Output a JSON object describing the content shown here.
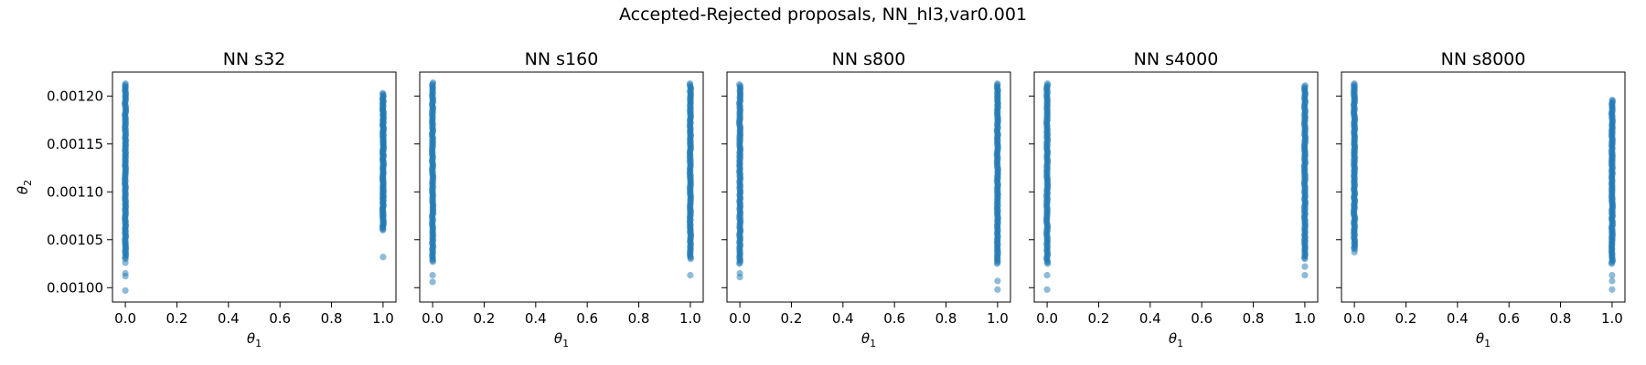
{
  "figure": {
    "suptitle": "Accepted-Rejected proposals, NN_hl3,var0.001"
  },
  "style": {
    "marker_color": "#1f77b4",
    "marker_opacity": 0.5,
    "axes_color": "#000000",
    "background": "#ffffff"
  },
  "shared_axes": {
    "xlabel_base": "θ",
    "xlabel_sub": "1",
    "ylabel_base": "θ",
    "ylabel_sub": "2",
    "xlim": [
      -0.05,
      1.05
    ],
    "ylim": [
      0.000985,
      0.001225
    ],
    "xticks": [
      0.0,
      0.2,
      0.4,
      0.6,
      0.8,
      1.0
    ],
    "xtick_labels": [
      "0.0",
      "0.2",
      "0.4",
      "0.6",
      "0.8",
      "1.0"
    ],
    "yticks": [
      0.001,
      0.00105,
      0.0011,
      0.00115,
      0.0012
    ],
    "ytick_labels": [
      "0.00100",
      "0.00105",
      "0.00110",
      "0.00115",
      "0.00120"
    ],
    "sharey": true
  },
  "chart_data": [
    {
      "type": "scatter",
      "title": "NN s32",
      "series": [
        {
          "x": 0,
          "band": [
            0.00103,
            0.001213
          ],
          "outliers": [
            0.001026,
            0.001015,
            0.001012,
            0.000997
          ]
        },
        {
          "x": 1,
          "band": [
            0.00106,
            0.001203
          ],
          "outliers": [
            0.001032
          ]
        }
      ]
    },
    {
      "type": "scatter",
      "title": "NN s160",
      "series": [
        {
          "x": 0,
          "band": [
            0.001027,
            0.001214
          ],
          "outliers": [
            0.001013,
            0.001006
          ]
        },
        {
          "x": 1,
          "band": [
            0.00103,
            0.001213
          ],
          "outliers": [
            0.001013
          ]
        }
      ]
    },
    {
      "type": "scatter",
      "title": "NN s800",
      "series": [
        {
          "x": 0,
          "band": [
            0.001025,
            0.001212
          ],
          "outliers": [
            0.001015,
            0.001011
          ]
        },
        {
          "x": 1,
          "band": [
            0.001025,
            0.001213
          ],
          "outliers": [
            0.001007,
            0.000998
          ]
        }
      ]
    },
    {
      "type": "scatter",
      "title": "NN s4000",
      "series": [
        {
          "x": 0,
          "band": [
            0.001025,
            0.001213
          ],
          "outliers": [
            0.001013,
            0.000998
          ]
        },
        {
          "x": 1,
          "band": [
            0.00103,
            0.001211
          ],
          "outliers": [
            0.001022,
            0.001013
          ]
        }
      ]
    },
    {
      "type": "scatter",
      "title": "NN s8000",
      "series": [
        {
          "x": 0,
          "band": [
            0.00104,
            0.001213
          ],
          "outliers": [
            0.001037
          ]
        },
        {
          "x": 1,
          "band": [
            0.001025,
            0.001196
          ],
          "outliers": [
            0.001013,
            0.001007,
            0.000998
          ]
        }
      ]
    }
  ]
}
